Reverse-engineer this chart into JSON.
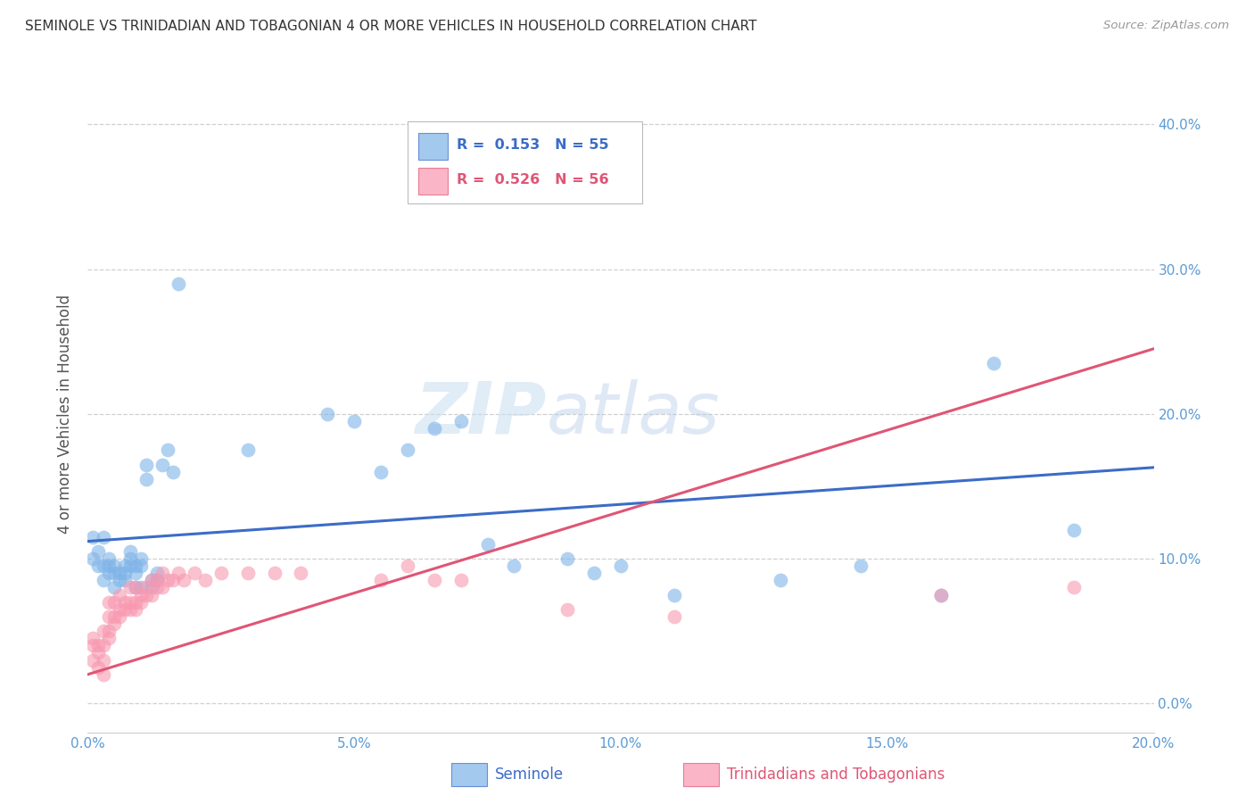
{
  "title": "SEMINOLE VS TRINIDADIAN AND TOBAGONIAN 4 OR MORE VEHICLES IN HOUSEHOLD CORRELATION CHART",
  "source": "Source: ZipAtlas.com",
  "ylabel": "4 or more Vehicles in Household",
  "xlim": [
    0.0,
    0.2
  ],
  "ylim": [
    -0.02,
    0.42
  ],
  "ylim_display": [
    0.0,
    0.4
  ],
  "xticks": [
    0.0,
    0.05,
    0.1,
    0.15,
    0.2
  ],
  "yticks": [
    0.0,
    0.1,
    0.2,
    0.3,
    0.4
  ],
  "xtick_labels": [
    "0.0%",
    "5.0%",
    "10.0%",
    "15.0%",
    "20.0%"
  ],
  "ytick_labels_right": [
    "0.0%",
    "10.0%",
    "20.0%",
    "30.0%",
    "40.0%"
  ],
  "legend_labels": [
    "Seminole",
    "Trinidadians and Tobagonians"
  ],
  "seminole_R": "0.153",
  "seminole_N": "55",
  "trini_R": "0.526",
  "trini_N": "56",
  "blue_color": "#7EB3E8",
  "pink_color": "#F898B0",
  "blue_line_color": "#3B6CC7",
  "pink_line_color": "#E05575",
  "axis_label_color": "#5B9BD5",
  "watermark": "ZIPatlas",
  "seminole_x": [
    0.001,
    0.001,
    0.002,
    0.002,
    0.003,
    0.003,
    0.003,
    0.004,
    0.004,
    0.004,
    0.005,
    0.005,
    0.005,
    0.006,
    0.006,
    0.007,
    0.007,
    0.007,
    0.008,
    0.008,
    0.008,
    0.009,
    0.009,
    0.009,
    0.01,
    0.01,
    0.01,
    0.011,
    0.011,
    0.012,
    0.012,
    0.013,
    0.013,
    0.014,
    0.015,
    0.016,
    0.017,
    0.03,
    0.045,
    0.05,
    0.055,
    0.06,
    0.065,
    0.07,
    0.075,
    0.08,
    0.09,
    0.095,
    0.1,
    0.11,
    0.13,
    0.145,
    0.16,
    0.17,
    0.185
  ],
  "seminole_y": [
    0.115,
    0.1,
    0.095,
    0.105,
    0.085,
    0.095,
    0.115,
    0.09,
    0.095,
    0.1,
    0.09,
    0.08,
    0.095,
    0.085,
    0.09,
    0.085,
    0.09,
    0.095,
    0.095,
    0.1,
    0.105,
    0.08,
    0.09,
    0.095,
    0.08,
    0.095,
    0.1,
    0.155,
    0.165,
    0.08,
    0.085,
    0.085,
    0.09,
    0.165,
    0.175,
    0.16,
    0.29,
    0.175,
    0.2,
    0.195,
    0.16,
    0.175,
    0.19,
    0.195,
    0.11,
    0.095,
    0.1,
    0.09,
    0.095,
    0.075,
    0.085,
    0.095,
    0.075,
    0.235,
    0.12
  ],
  "trini_x": [
    0.001,
    0.001,
    0.001,
    0.002,
    0.002,
    0.002,
    0.003,
    0.003,
    0.003,
    0.003,
    0.004,
    0.004,
    0.004,
    0.004,
    0.005,
    0.005,
    0.005,
    0.006,
    0.006,
    0.006,
    0.007,
    0.007,
    0.008,
    0.008,
    0.008,
    0.009,
    0.009,
    0.009,
    0.01,
    0.01,
    0.011,
    0.011,
    0.012,
    0.012,
    0.013,
    0.013,
    0.014,
    0.014,
    0.015,
    0.016,
    0.017,
    0.018,
    0.02,
    0.022,
    0.025,
    0.03,
    0.035,
    0.04,
    0.055,
    0.06,
    0.065,
    0.07,
    0.09,
    0.11,
    0.16,
    0.185
  ],
  "trini_y": [
    0.03,
    0.04,
    0.045,
    0.025,
    0.035,
    0.04,
    0.02,
    0.03,
    0.04,
    0.05,
    0.045,
    0.05,
    0.06,
    0.07,
    0.055,
    0.06,
    0.07,
    0.06,
    0.065,
    0.075,
    0.07,
    0.065,
    0.065,
    0.07,
    0.08,
    0.065,
    0.07,
    0.08,
    0.07,
    0.075,
    0.075,
    0.08,
    0.075,
    0.085,
    0.08,
    0.085,
    0.08,
    0.09,
    0.085,
    0.085,
    0.09,
    0.085,
    0.09,
    0.085,
    0.09,
    0.09,
    0.09,
    0.09,
    0.085,
    0.095,
    0.085,
    0.085,
    0.065,
    0.06,
    0.075,
    0.08
  ],
  "seminole_line_x0": 0.0,
  "seminole_line_y0": 0.112,
  "seminole_line_x1": 0.2,
  "seminole_line_y1": 0.163,
  "trini_line_x0": 0.0,
  "trini_line_y0": 0.02,
  "trini_line_x1": 0.2,
  "trini_line_y1": 0.245
}
